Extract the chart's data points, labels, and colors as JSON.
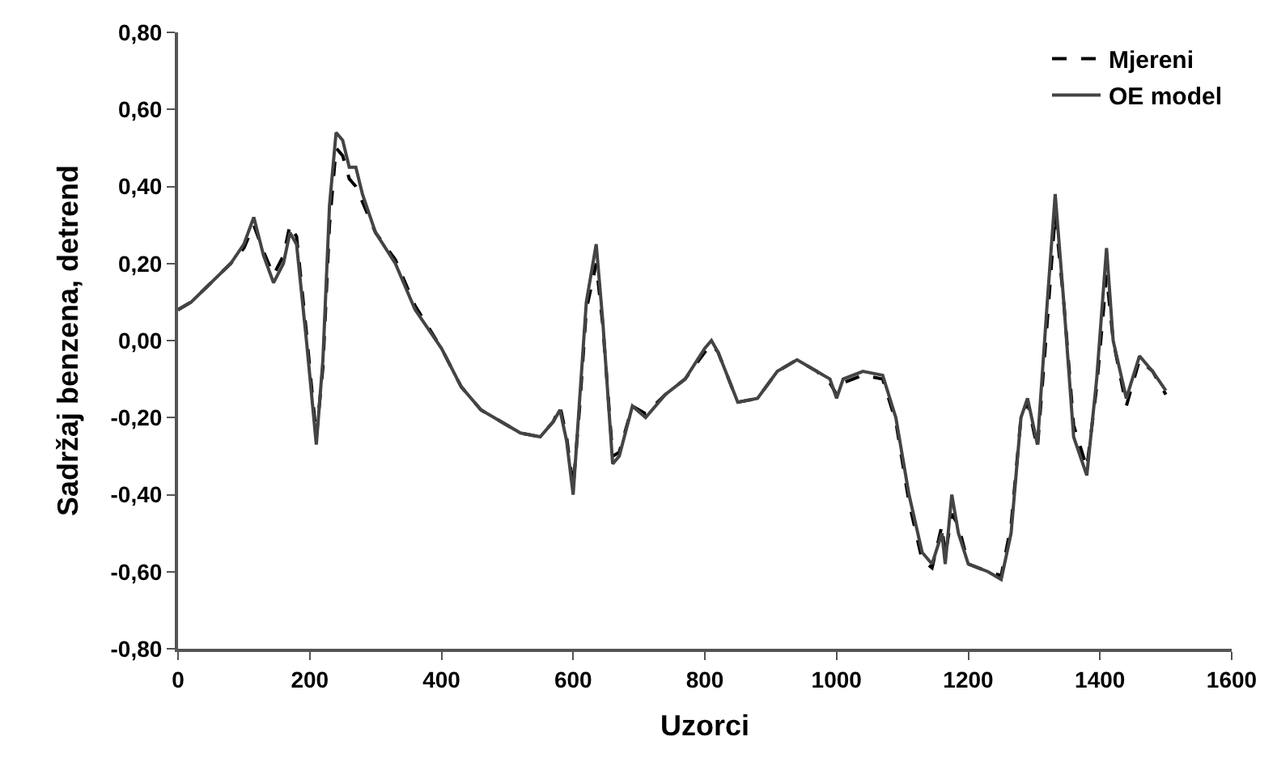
{
  "chart_data": {
    "type": "line",
    "xlabel": "Uzorci",
    "ylabel": "Sadržaj benzena, detrend",
    "x": [
      0,
      20,
      50,
      80,
      100,
      115,
      130,
      145,
      160,
      170,
      180,
      195,
      210,
      220,
      230,
      240,
      250,
      260,
      270,
      280,
      300,
      330,
      360,
      400,
      430,
      460,
      490,
      520,
      550,
      570,
      580,
      590,
      600,
      610,
      620,
      635,
      645,
      660,
      670,
      690,
      710,
      740,
      770,
      800,
      810,
      820,
      850,
      880,
      910,
      940,
      970,
      990,
      1000,
      1010,
      1040,
      1070,
      1090,
      1110,
      1130,
      1145,
      1160,
      1165,
      1175,
      1185,
      1200,
      1230,
      1250,
      1265,
      1280,
      1290,
      1305,
      1320,
      1332,
      1345,
      1360,
      1380,
      1395,
      1410,
      1420,
      1440,
      1460,
      1480,
      1500
    ],
    "series": [
      {
        "name": "Mjereni",
        "color": "#000000",
        "line_style": "dashed",
        "values": [
          0.08,
          0.1,
          0.15,
          0.2,
          0.24,
          0.3,
          0.23,
          0.17,
          0.22,
          0.3,
          0.27,
          0.02,
          -0.25,
          -0.07,
          0.3,
          0.5,
          0.48,
          0.42,
          0.4,
          0.36,
          0.28,
          0.21,
          0.09,
          -0.02,
          -0.12,
          -0.18,
          -0.21,
          -0.24,
          -0.25,
          -0.21,
          -0.17,
          -0.25,
          -0.38,
          -0.17,
          0.08,
          0.2,
          0.04,
          -0.3,
          -0.29,
          -0.17,
          -0.19,
          -0.14,
          -0.1,
          -0.03,
          -0.01,
          -0.03,
          -0.16,
          -0.15,
          -0.08,
          -0.05,
          -0.08,
          -0.11,
          -0.14,
          -0.11,
          -0.09,
          -0.1,
          -0.21,
          -0.42,
          -0.57,
          -0.59,
          -0.48,
          -0.56,
          -0.45,
          -0.48,
          -0.58,
          -0.6,
          -0.61,
          -0.48,
          -0.2,
          -0.16,
          -0.28,
          0.05,
          0.33,
          0.1,
          -0.22,
          -0.33,
          -0.12,
          0.17,
          0.0,
          -0.17,
          -0.05,
          -0.08,
          -0.14
        ]
      },
      {
        "name": "OE model",
        "color": "#444444",
        "line_style": "solid",
        "values": [
          0.08,
          0.1,
          0.15,
          0.2,
          0.25,
          0.32,
          0.22,
          0.15,
          0.2,
          0.28,
          0.25,
          0.0,
          -0.27,
          -0.05,
          0.35,
          0.54,
          0.52,
          0.45,
          0.45,
          0.38,
          0.28,
          0.2,
          0.08,
          -0.02,
          -0.12,
          -0.18,
          -0.21,
          -0.24,
          -0.25,
          -0.21,
          -0.18,
          -0.26,
          -0.4,
          -0.15,
          0.1,
          0.25,
          0.05,
          -0.32,
          -0.3,
          -0.17,
          -0.2,
          -0.14,
          -0.1,
          -0.02,
          0.0,
          -0.03,
          -0.16,
          -0.15,
          -0.08,
          -0.05,
          -0.08,
          -0.1,
          -0.15,
          -0.1,
          -0.08,
          -0.09,
          -0.2,
          -0.4,
          -0.55,
          -0.58,
          -0.5,
          -0.58,
          -0.4,
          -0.5,
          -0.58,
          -0.6,
          -0.62,
          -0.5,
          -0.2,
          -0.15,
          -0.27,
          0.1,
          0.38,
          0.1,
          -0.25,
          -0.35,
          -0.1,
          0.24,
          0.0,
          -0.15,
          -0.04,
          -0.08,
          -0.13
        ]
      }
    ],
    "xlim": [
      0,
      1600
    ],
    "xticks": [
      0,
      200,
      400,
      600,
      800,
      1000,
      1200,
      1400,
      1600
    ],
    "ylim": [
      -0.8,
      0.8
    ],
    "yticks": [
      {
        "value": -0.8,
        "label": "-0,80"
      },
      {
        "value": -0.6,
        "label": "-0,60"
      },
      {
        "value": -0.4,
        "label": "-0,40"
      },
      {
        "value": -0.2,
        "label": "-0,20"
      },
      {
        "value": 0,
        "label": "0,00"
      },
      {
        "value": 0.2,
        "label": "0,20"
      },
      {
        "value": 0.4,
        "label": "0,40"
      },
      {
        "value": 0.6,
        "label": "0,60"
      },
      {
        "value": 0.8,
        "label": "0,80"
      }
    ],
    "legend": "top right"
  }
}
